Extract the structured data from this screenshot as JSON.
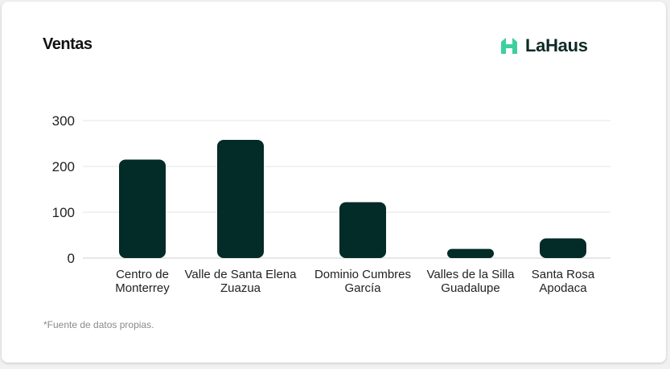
{
  "header": {
    "title": "Ventas",
    "brand_name": "LaHaus",
    "brand_icon": "house-logo-icon",
    "brand_color": "#3ecf9f"
  },
  "footnote": "*Fuente de datos propias.",
  "chart_data": {
    "type": "bar",
    "title": "Ventas",
    "xlabel": "",
    "ylabel": "",
    "categories": [
      [
        "Centro de",
        "Monterrey"
      ],
      [
        "Valle de Santa Elena",
        "Zuazua"
      ],
      [
        "Dominio Cumbres",
        "García"
      ],
      [
        "Valles de la Silla",
        "Guadalupe"
      ],
      [
        "Santa Rosa",
        "Apodaca"
      ]
    ],
    "values": [
      215,
      258,
      122,
      20,
      43
    ],
    "ylim": [
      0,
      300
    ],
    "yticks": [
      0,
      100,
      200,
      300
    ],
    "grid": true,
    "bar_color": "#032b27"
  }
}
